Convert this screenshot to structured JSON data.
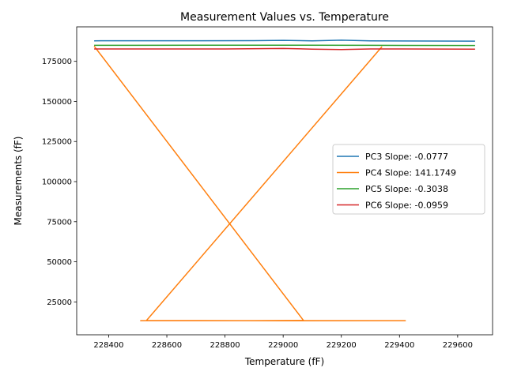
{
  "chart_data": {
    "type": "line",
    "title": "Measurement Values vs. Temperature",
    "xlabel": "Temperature (fF)",
    "ylabel": "Measurements (fF)",
    "xlim": [
      228290,
      229720
    ],
    "ylim": [
      4500,
      196500
    ],
    "xticks": [
      228400,
      228600,
      228800,
      229000,
      229200,
      229400,
      229600
    ],
    "yticks": [
      25000,
      50000,
      75000,
      100000,
      125000,
      150000,
      175000
    ],
    "grid": false,
    "legend_position": "center-right",
    "series": [
      {
        "name": "PC3 Slope: -0.0777",
        "color": "#1f77b4",
        "points": [
          [
            228350,
            187800
          ],
          [
            228500,
            187850
          ],
          [
            228700,
            187850
          ],
          [
            228900,
            187900
          ],
          [
            229000,
            188100
          ],
          [
            229100,
            187800
          ],
          [
            229200,
            188200
          ],
          [
            229300,
            187800
          ],
          [
            229660,
            187600
          ]
        ]
      },
      {
        "name": "PC4 Slope: 141.1749",
        "color": "#ff7f0e",
        "points": [
          [
            228350,
            184500
          ],
          [
            229070,
            13400
          ],
          [
            228900,
            13300
          ],
          [
            228510,
            13300
          ],
          [
            229420,
            13300
          ],
          [
            229000,
            13200
          ],
          [
            228530,
            13400
          ],
          [
            229340,
            184200
          ]
        ]
      },
      {
        "name": "PC5 Slope: -0.3038",
        "color": "#2ca02c",
        "points": [
          [
            228350,
            185000
          ],
          [
            228500,
            185000
          ],
          [
            228900,
            185100
          ],
          [
            229300,
            185000
          ],
          [
            229660,
            184900
          ]
        ]
      },
      {
        "name": "PC6 Slope: -0.0959",
        "color": "#d62728",
        "points": [
          [
            228350,
            182700
          ],
          [
            228800,
            182700
          ],
          [
            229000,
            183000
          ],
          [
            229100,
            182600
          ],
          [
            229200,
            182300
          ],
          [
            229300,
            182700
          ],
          [
            229660,
            182600
          ]
        ]
      }
    ]
  }
}
